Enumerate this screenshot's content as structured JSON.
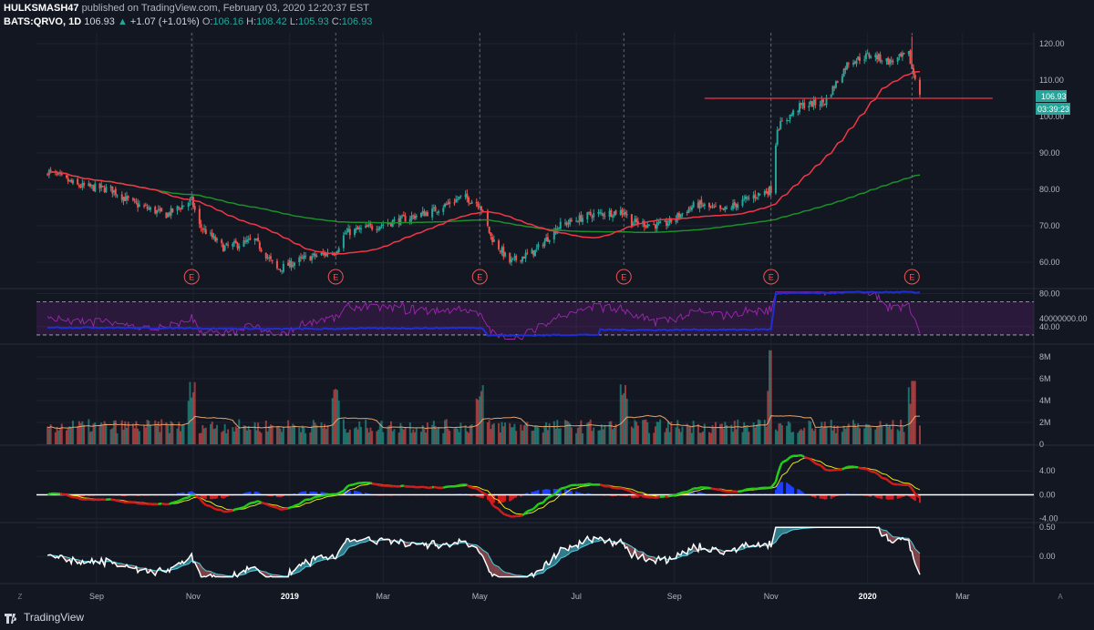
{
  "header": {
    "author": "HULKSMASH47",
    "published": "published on TradingView.com, February 03, 2020 12:20:37 EST",
    "symbol": "BATS:QRVO, 1D",
    "last": "106.93",
    "change_arrow": "▲",
    "change": "+1.07 (+1.01%)",
    "o_label": "O:",
    "o": "106.16",
    "h_label": "H:",
    "h": "108.42",
    "l_label": "L:",
    "l": "105.93",
    "c_label": "C:",
    "c": "106.93"
  },
  "price_badge": {
    "price": "106.93",
    "countdown": "03:39:23"
  },
  "footer": {
    "brand": "TradingView",
    "left_button": "Z",
    "right_button": "A"
  },
  "colors": {
    "background": "#131722",
    "grid": "#1f2330",
    "up": "#26a69a",
    "down": "#ef5350",
    "ma_fast": "#f23645",
    "ma_slow": "#1b8f2a",
    "rsi": "#9c27b0",
    "obv": "#1e2fd6",
    "volume_ma": "#e8a36b",
    "macd_fast": "#21d11a",
    "macd_signal": "#e8e61a",
    "osc_line": "#ffffff",
    "osc_fill_up": "#4dd0e1",
    "osc_fill_down": "#d56a6a"
  },
  "chart_data": [
    {
      "type": "candlestick",
      "pane": "price",
      "y_ticks": [
        "120.00",
        "110.00",
        "100.00",
        "90.00",
        "80.00",
        "70.00",
        "60.00"
      ],
      "ylim": [
        53,
        123
      ],
      "x_ticks": [
        "Sep",
        "Nov",
        "2019",
        "Mar",
        "May",
        "Jul",
        "Sep",
        "Nov",
        "2020",
        "Mar"
      ],
      "earnings_marker": "E",
      "earnings_dates": [
        "2018-10-31",
        "2019-01-30",
        "2019-05-01",
        "2019-07-31",
        "2019-11-01",
        "2020-01-29"
      ],
      "close_anchors": [
        {
          "x": "2018-08-01",
          "y": 85
        },
        {
          "x": "2018-08-20",
          "y": 81
        },
        {
          "x": "2018-09-10",
          "y": 80
        },
        {
          "x": "2018-09-25",
          "y": 76
        },
        {
          "x": "2018-10-15",
          "y": 73
        },
        {
          "x": "2018-10-31",
          "y": 77
        },
        {
          "x": "2018-11-05",
          "y": 70
        },
        {
          "x": "2018-11-20",
          "y": 64
        },
        {
          "x": "2018-12-10",
          "y": 66
        },
        {
          "x": "2018-12-24",
          "y": 58
        },
        {
          "x": "2019-01-10",
          "y": 61
        },
        {
          "x": "2019-01-30",
          "y": 63
        },
        {
          "x": "2019-02-05",
          "y": 68
        },
        {
          "x": "2019-02-25",
          "y": 70
        },
        {
          "x": "2019-03-15",
          "y": 72
        },
        {
          "x": "2019-04-01",
          "y": 74
        },
        {
          "x": "2019-04-20",
          "y": 78
        },
        {
          "x": "2019-05-01",
          "y": 76
        },
        {
          "x": "2019-05-08",
          "y": 67
        },
        {
          "x": "2019-05-20",
          "y": 60
        },
        {
          "x": "2019-06-05",
          "y": 63
        },
        {
          "x": "2019-06-20",
          "y": 70
        },
        {
          "x": "2019-07-10",
          "y": 73
        },
        {
          "x": "2019-07-31",
          "y": 74
        },
        {
          "x": "2019-08-05",
          "y": 71
        },
        {
          "x": "2019-08-25",
          "y": 70
        },
        {
          "x": "2019-09-15",
          "y": 76
        },
        {
          "x": "2019-10-01",
          "y": 74
        },
        {
          "x": "2019-10-20",
          "y": 78
        },
        {
          "x": "2019-11-01",
          "y": 80
        },
        {
          "x": "2019-11-05",
          "y": 97
        },
        {
          "x": "2019-11-20",
          "y": 103
        },
        {
          "x": "2019-12-05",
          "y": 104
        },
        {
          "x": "2019-12-20",
          "y": 115
        },
        {
          "x": "2020-01-03",
          "y": 117
        },
        {
          "x": "2020-01-15",
          "y": 115
        },
        {
          "x": "2020-01-27",
          "y": 117
        },
        {
          "x": "2020-01-29",
          "y": 113
        },
        {
          "x": "2020-02-03",
          "y": 106.93
        }
      ],
      "horizontal_line": 105
    },
    {
      "type": "line",
      "pane": "rsi",
      "y_ticks": [
        "80.00",
        "40.00"
      ],
      "bands": [
        70,
        30
      ],
      "ylim": [
        20,
        85
      ],
      "right_label": "40000000.00"
    },
    {
      "type": "bar",
      "pane": "volume",
      "y_ticks": [
        "8M",
        "6M",
        "4M",
        "2M",
        "0"
      ],
      "ylim": [
        0,
        9
      ]
    },
    {
      "type": "line",
      "pane": "macd",
      "y_ticks": [
        "4.00",
        "0.00",
        "-4.00"
      ],
      "ylim": [
        -4.5,
        8
      ]
    },
    {
      "type": "area",
      "pane": "oscillator",
      "y_ticks": [
        "0.50",
        "0.00"
      ],
      "ylim": [
        -0.45,
        0.55
      ]
    }
  ]
}
